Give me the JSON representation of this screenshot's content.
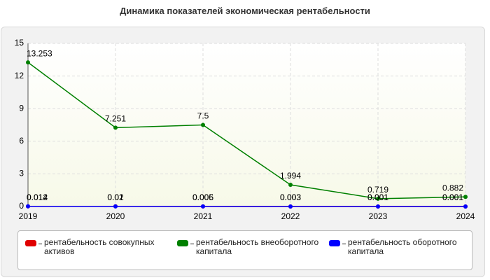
{
  "chart_data": {
    "type": "line",
    "title": "Динамика показателей экономическая рентабельности",
    "categories": [
      "2019",
      "2020",
      "2021",
      "2022",
      "2023",
      "2024"
    ],
    "series": [
      {
        "name": "рентабельность совокупных активов",
        "color": "#e00000",
        "values": [
          0.012,
          0.02,
          0.006,
          0.003,
          0.001,
          0.001
        ]
      },
      {
        "name": "рентабельность внеоборотного капитала",
        "color": "#008000",
        "values": [
          13.253,
          7.251,
          7.5,
          1.994,
          0.719,
          0.882
        ]
      },
      {
        "name": "рентабельность оборотного капитала",
        "color": "#0000ff",
        "values": [
          0.014,
          0.01,
          0.005,
          0.003,
          0.001,
          0.001
        ]
      }
    ],
    "ylim": [
      0,
      15
    ],
    "yticks": [
      0,
      3,
      6,
      9,
      12,
      15
    ],
    "grid": true,
    "legend": "bottom"
  }
}
